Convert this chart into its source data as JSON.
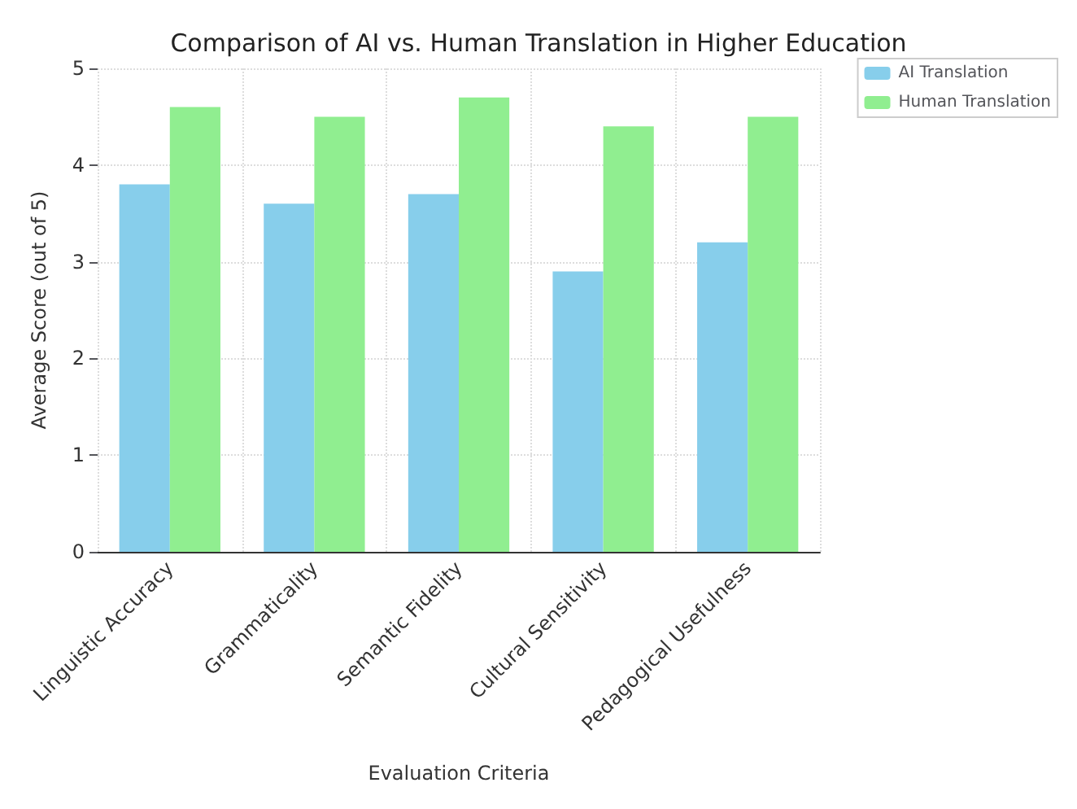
{
  "chart_data": {
    "type": "bar",
    "title": "Comparison of AI vs. Human Translation in Higher Education",
    "xlabel": "Evaluation Criteria",
    "ylabel": "Average Score (out of 5)",
    "categories": [
      "Linguistic Accuracy",
      "Grammaticality",
      "Semantic Fidelity",
      "Cultural Sensitivity",
      "Pedagogical Usefulness"
    ],
    "series": [
      {
        "name": "AI Translation",
        "color": "#87ceeb",
        "values": [
          3.8,
          3.6,
          3.7,
          2.9,
          3.2
        ]
      },
      {
        "name": "Human Translation",
        "color": "#90ee90",
        "values": [
          4.6,
          4.5,
          4.7,
          4.4,
          4.5
        ]
      }
    ],
    "ylim": [
      0,
      5
    ],
    "yticks": [
      0,
      1,
      2,
      3,
      4,
      5
    ],
    "grid": true,
    "legend": "top right"
  }
}
